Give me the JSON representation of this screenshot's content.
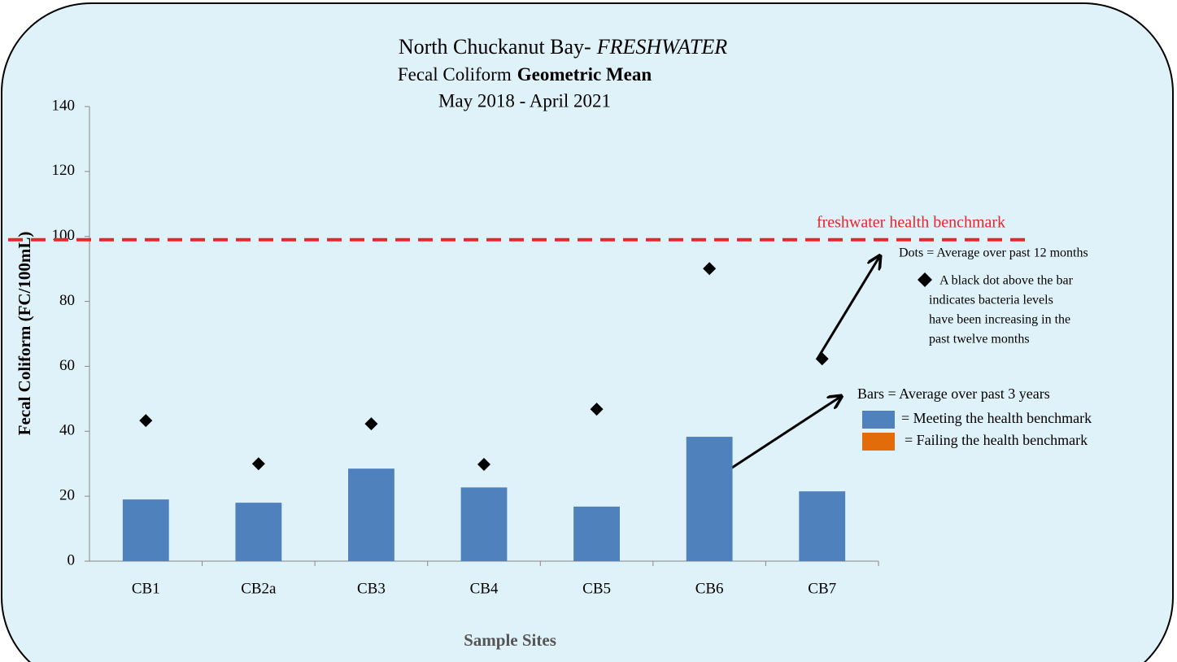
{
  "chart_data": {
    "type": "bar",
    "title": {
      "main": "North Chuckanut Bay-",
      "emphasis": "FRESHWATER"
    },
    "subtitle": {
      "main": "Fecal Coliform",
      "bold": "Geometric Mean"
    },
    "date_range": "May 2018 - April 2021",
    "y_label": "Fecal Coliform (FC/100mL)",
    "x_label": "Sample Sites",
    "categories": [
      "CB1",
      "CB2a",
      "CB3",
      "CB4",
      "CB5",
      "CB6",
      "CB7"
    ],
    "bars": {
      "color": "#4f81bd",
      "values": [
        19,
        18,
        28.5,
        22.7,
        16.8,
        38.3,
        21.5
      ]
    },
    "dots": {
      "color": "#000000",
      "values": [
        43.3,
        30,
        42.3,
        29.8,
        46.8,
        90.1,
        62.3
      ]
    },
    "benchmark": {
      "value": 99,
      "label": "freshwater health benchmark",
      "color": "#e8262a"
    },
    "ylim": [
      0,
      140
    ],
    "yticks": [
      0,
      20,
      40,
      60,
      80,
      100,
      120,
      140
    ],
    "dots_note": {
      "heading": "Dots = Average  over past 12 months",
      "lines": [
        "A black dot above the bar",
        "indicates bacteria  levels",
        "have been increasing in the",
        "past twelve months"
      ]
    },
    "bars_note": "Bars = Average over past 3 years",
    "legend": [
      {
        "label": "= Meeting  the health benchmark",
        "color": "#4f81bd"
      },
      {
        "label": "= Failing the health benchmark",
        "color": "#e36c0a"
      }
    ]
  }
}
